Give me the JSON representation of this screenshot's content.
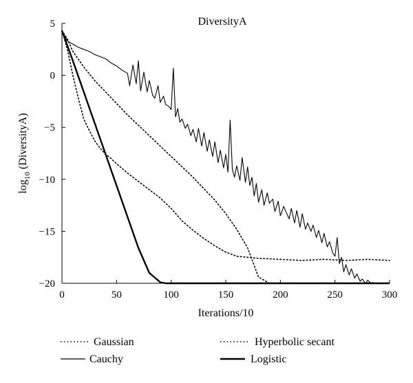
{
  "chart_data": {
    "type": "line",
    "title": "DiversityA",
    "xlabel": "Iterations/10",
    "ylabel_main": "log",
    "ylabel_sub": "10",
    "ylabel_rest": " (DiversityA)",
    "xlim": [
      0,
      300
    ],
    "ylim": [
      -20,
      5
    ],
    "xticks": [
      0,
      50,
      100,
      150,
      200,
      250,
      300
    ],
    "yticks": [
      5,
      0,
      -5,
      -10,
      -15,
      -20
    ],
    "grid": false,
    "legend_placement": "bottom",
    "series": [
      {
        "name": "Gaussian",
        "style": "dotted",
        "x": [
          0,
          5,
          10,
          20,
          30,
          40,
          50,
          60,
          70,
          80,
          90,
          100,
          110,
          120,
          130,
          140,
          150,
          160,
          170,
          175,
          180,
          190,
          200,
          220,
          240,
          260,
          280,
          300
        ],
        "y": [
          4.3,
          3.5,
          2.3,
          0.8,
          -0.5,
          -1.6,
          -2.7,
          -3.8,
          -4.8,
          -5.8,
          -6.8,
          -7.8,
          -8.8,
          -9.8,
          -10.9,
          -12.0,
          -13.3,
          -14.8,
          -16.6,
          -18.0,
          -19.4,
          -20,
          -20,
          -20,
          -20,
          -20,
          -20,
          -20
        ]
      },
      {
        "name": "Hyperbolic secant",
        "style": "dotted",
        "x": [
          0,
          5,
          10,
          15,
          20,
          25,
          30,
          35,
          40,
          45,
          50,
          60,
          70,
          80,
          90,
          100,
          110,
          120,
          130,
          140,
          150,
          160,
          170,
          180,
          200,
          220,
          240,
          260,
          280,
          300
        ],
        "y": [
          4.3,
          2.5,
          0.0,
          -2.2,
          -4.2,
          -5.3,
          -6.3,
          -7.0,
          -7.6,
          -8.0,
          -8.5,
          -9.4,
          -10.2,
          -11.0,
          -11.8,
          -12.8,
          -14.0,
          -14.9,
          -15.7,
          -16.4,
          -17.0,
          -17.4,
          -17.5,
          -17.6,
          -17.7,
          -17.8,
          -17.7,
          -17.8,
          -17.7,
          -17.8
        ]
      },
      {
        "name": "Cauchy",
        "style": "solid-thin",
        "x": [
          0,
          5,
          10,
          15,
          20,
          25,
          30,
          35,
          40,
          45,
          50,
          55,
          60,
          62,
          65,
          68,
          70,
          72,
          75,
          78,
          80,
          83,
          85,
          88,
          90,
          93,
          95,
          98,
          100,
          102,
          104,
          106,
          108,
          110,
          113,
          115,
          118,
          120,
          123,
          125,
          128,
          130,
          133,
          135,
          138,
          140,
          143,
          145,
          148,
          150,
          152,
          154,
          156,
          158,
          160,
          163,
          165,
          168,
          170,
          172,
          174,
          176,
          178,
          180,
          183,
          185,
          188,
          190,
          193,
          195,
          198,
          200,
          203,
          205,
          208,
          210,
          213,
          215,
          218,
          220,
          223,
          225,
          228,
          230,
          233,
          235,
          238,
          240,
          243,
          245,
          248,
          250,
          252,
          254,
          256,
          258,
          260,
          263,
          265,
          268,
          270,
          273,
          275,
          278,
          280,
          283,
          285
        ],
        "y": [
          4.3,
          3.3,
          3.0,
          2.7,
          2.5,
          2.3,
          2.0,
          1.8,
          1.6,
          1.2,
          0.9,
          0.5,
          0.2,
          -1.0,
          1.0,
          -0.8,
          1.4,
          -1.5,
          0.3,
          -1.6,
          -0.5,
          -1.9,
          -2.2,
          -1.0,
          -2.6,
          -2.0,
          -2.8,
          -3.0,
          -3.3,
          0.7,
          -4.0,
          -3.2,
          -4.5,
          -4.2,
          -5.1,
          -4.7,
          -5.8,
          -5.2,
          -6.4,
          -5.1,
          -6.8,
          -5.5,
          -7.3,
          -6.2,
          -7.8,
          -6.4,
          -8.4,
          -7.2,
          -8.9,
          -7.6,
          -9.3,
          -4.3,
          -9.0,
          -9.8,
          -8.7,
          -10.1,
          -7.9,
          -10.3,
          -8.8,
          -10.6,
          -9.8,
          -11.6,
          -10.4,
          -12.2,
          -11.0,
          -12.5,
          -11.3,
          -12.3,
          -11.9,
          -13.1,
          -12.1,
          -13.5,
          -12.6,
          -13.1,
          -13.8,
          -12.8,
          -14.2,
          -13.0,
          -14.6,
          -13.3,
          -14.8,
          -14.2,
          -15.0,
          -14.4,
          -15.6,
          -14.9,
          -16.1,
          -15.2,
          -16.5,
          -16.0,
          -17.1,
          -17.4,
          -15.6,
          -18.1,
          -17.5,
          -18.9,
          -18.2,
          -19.2,
          -18.6,
          -19.5,
          -19.1,
          -19.8,
          -19.6,
          -20.0,
          -19.7,
          -20.0,
          -19.9
        ]
      },
      {
        "name": "Logistic",
        "style": "solid-thick",
        "x": [
          0,
          10,
          20,
          30,
          40,
          50,
          60,
          70,
          80,
          90,
          95,
          100,
          120,
          150,
          200,
          250,
          300
        ],
        "y": [
          4.3,
          1.4,
          -1.6,
          -4.6,
          -7.6,
          -10.6,
          -13.6,
          -16.6,
          -19.0,
          -19.9,
          -20,
          -20,
          -20,
          -20,
          -20,
          -20,
          -20
        ]
      }
    ]
  }
}
